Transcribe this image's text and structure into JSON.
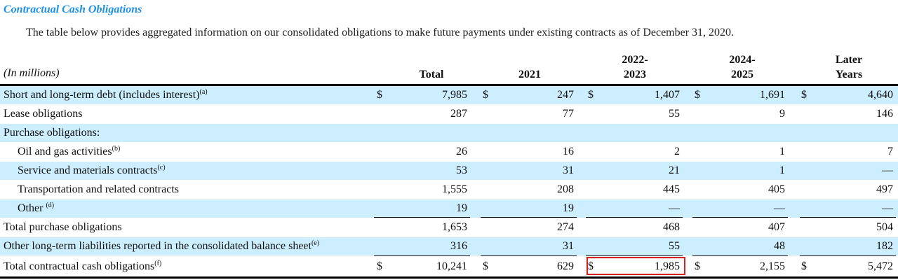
{
  "section_title": "Contractual Cash Obligations",
  "intro": "The table below provides aggregated information on our consolidated obligations to make future payments under existing contracts as of December 31, 2020.",
  "units_label": "(In millions)",
  "columns": {
    "total": "Total",
    "y2021": "2021",
    "y2022_line1": "2022-",
    "y2022_line2": "2023",
    "y2024_line1": "2024-",
    "y2024_line2": "2025",
    "later_line1": "Later",
    "later_line2": "Years"
  },
  "currency_symbol": "$",
  "rows": [
    {
      "label": "Short and long-term debt (includes interest)",
      "note": "(a)",
      "total": "7,985",
      "y2021": "247",
      "y2022": "1,407",
      "y2024": "1,691",
      "later": "4,640"
    },
    {
      "label": "Lease obligations",
      "note": "",
      "total": "287",
      "y2021": "77",
      "y2022": "55",
      "y2024": "9",
      "later": "146"
    },
    {
      "label": "Purchase obligations:",
      "note": "",
      "total": "",
      "y2021": "",
      "y2022": "",
      "y2024": "",
      "later": ""
    },
    {
      "label": "Oil and gas activities",
      "note": "(b)",
      "total": "26",
      "y2021": "16",
      "y2022": "2",
      "y2024": "1",
      "later": "7"
    },
    {
      "label": "Service and materials contracts",
      "note": "(c)",
      "total": "53",
      "y2021": "31",
      "y2022": "21",
      "y2024": "1",
      "later": "—"
    },
    {
      "label": "Transportation and related contracts",
      "note": "",
      "total": "1,555",
      "y2021": "208",
      "y2022": "445",
      "y2024": "405",
      "later": "497"
    },
    {
      "label": "Other",
      "note": "(d)",
      "total": "19",
      "y2021": "19",
      "y2022": "—",
      "y2024": "—",
      "later": "—"
    },
    {
      "label": "Total purchase obligations",
      "note": "",
      "total": "1,653",
      "y2021": "274",
      "y2022": "468",
      "y2024": "407",
      "later": "504"
    },
    {
      "label": "Other long-term liabilities reported in the consolidated balance sheet",
      "note": "(e)",
      "total": "316",
      "y2021": "31",
      "y2022": "55",
      "y2024": "48",
      "later": "182"
    },
    {
      "label": "Total contractual cash obligations",
      "note": "(f)",
      "total": "10,241",
      "y2021": "629",
      "y2022": "1,985",
      "y2024": "2,155",
      "later": "5,472"
    }
  ],
  "highlight_color": "#d42020",
  "row_shade_color": "#cdeefe"
}
